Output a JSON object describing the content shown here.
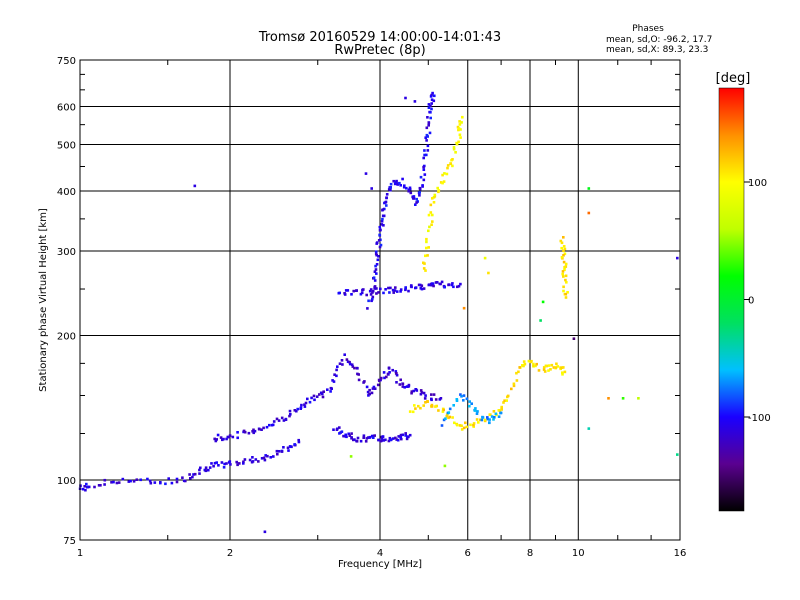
{
  "chart_data": {
    "type": "scatter",
    "title": "Tromsø 20160529 14:00:00-14:01:43",
    "subtitle": "RwPretec (8p)",
    "xlabel": "Frequency [MHz]",
    "ylabel": "Stationary phase Virtual Height [km]",
    "x_scale": "log",
    "y_scale": "log",
    "xlim": [
      1,
      16
    ],
    "ylim": [
      75,
      750
    ],
    "x_ticks": [
      {
        "value": 1,
        "label": "1"
      },
      {
        "value": 2,
        "label": "2"
      },
      {
        "value": 4,
        "label": "4"
      },
      {
        "value": 6,
        "label": "6"
      },
      {
        "value": 8,
        "label": "8"
      },
      {
        "value": 10,
        "label": "10"
      },
      {
        "value": 16,
        "label": "16"
      }
    ],
    "y_ticks": [
      {
        "value": 75,
        "label": "75"
      },
      {
        "value": 100,
        "label": "100"
      },
      {
        "value": 200,
        "label": "200"
      },
      {
        "value": 300,
        "label": "300"
      },
      {
        "value": 400,
        "label": "400"
      },
      {
        "value": 500,
        "label": "500"
      },
      {
        "value": 600,
        "label": "600"
      },
      {
        "value": 750,
        "label": "750"
      }
    ],
    "grid": true,
    "phase_stats": {
      "heading": "Phases",
      "line_o": "mean, sd,O: -96.2, 17.7",
      "line_x": "mean, sd,X:  89.3, 23.3"
    },
    "colorbar": {
      "unit": "[deg]",
      "range": [
        -180,
        180
      ],
      "ticks": [
        {
          "value": 100,
          "label": "100"
        },
        {
          "value": 0,
          "label": "0"
        },
        {
          "value": -100,
          "label": "-100"
        }
      ],
      "colors": [
        "#000000",
        "#5a0090",
        "#1a00ff",
        "#00c0ff",
        "#00e060",
        "#00ff00",
        "#c0ff00",
        "#ffff00",
        "#ff9000",
        "#ff0000"
      ]
    },
    "traces": [
      {
        "name": "",
        "phase": -110,
        "points": [
          [
            1.0,
            96
          ],
          [
            1.05,
            97
          ],
          [
            1.2,
            100
          ],
          [
            1.4,
            99
          ],
          [
            1.6,
            100
          ],
          [
            1.75,
            105
          ],
          [
            1.85,
            107
          ],
          [
            2.0,
            108
          ],
          [
            2.2,
            110
          ],
          [
            2.4,
            112
          ],
          [
            2.6,
            116
          ],
          [
            2.75,
            120
          ]
        ]
      },
      {
        "name": "",
        "phase": -110,
        "points": [
          [
            1.85,
            122
          ],
          [
            2.0,
            123
          ],
          [
            2.2,
            126
          ],
          [
            2.4,
            130
          ],
          [
            2.6,
            136
          ],
          [
            2.8,
            142
          ],
          [
            3.0,
            150
          ],
          [
            3.2,
            155
          ]
        ]
      },
      {
        "name": "",
        "phase": -110,
        "points": [
          [
            3.25,
            128
          ],
          [
            3.4,
            124
          ],
          [
            3.6,
            122
          ],
          [
            3.8,
            122
          ],
          [
            4.0,
            122
          ],
          [
            4.2,
            122
          ],
          [
            4.4,
            123
          ],
          [
            4.6,
            124
          ]
        ]
      },
      {
        "name": "",
        "phase": -115,
        "points": [
          [
            3.2,
            160
          ],
          [
            3.4,
            180
          ],
          [
            3.6,
            170
          ],
          [
            3.8,
            150
          ],
          [
            4.0,
            160
          ],
          [
            4.2,
            170
          ],
          [
            4.4,
            160
          ],
          [
            4.6,
            155
          ],
          [
            4.9,
            150
          ],
          [
            5.3,
            148
          ]
        ]
      },
      {
        "name": "",
        "phase": -110,
        "points": [
          [
            3.3,
            245
          ],
          [
            3.6,
            246
          ],
          [
            3.9,
            247
          ],
          [
            4.2,
            248
          ],
          [
            4.5,
            250
          ],
          [
            4.8,
            252
          ],
          [
            5.1,
            255
          ],
          [
            5.4,
            256
          ],
          [
            5.8,
            256
          ]
        ]
      },
      {
        "name": "",
        "phase": -105,
        "points": [
          [
            3.8,
            230
          ],
          [
            3.9,
            260
          ],
          [
            3.95,
            290
          ],
          [
            4.0,
            320
          ],
          [
            4.05,
            350
          ],
          [
            4.1,
            380
          ],
          [
            4.2,
            410
          ],
          [
            4.4,
            420
          ],
          [
            4.6,
            400
          ],
          [
            4.75,
            380
          ],
          [
            4.85,
            410
          ],
          [
            4.95,
            480
          ],
          [
            5.0,
            540
          ],
          [
            5.05,
            600
          ],
          [
            5.1,
            640
          ]
        ]
      },
      {
        "name": "",
        "phase": 100,
        "points": [
          [
            4.9,
            270
          ],
          [
            5.0,
            320
          ],
          [
            5.1,
            380
          ],
          [
            5.3,
            420
          ],
          [
            5.6,
            460
          ],
          [
            5.75,
            520
          ],
          [
            5.85,
            570
          ]
        ]
      },
      {
        "name": "",
        "phase": 110,
        "points": [
          [
            4.6,
            140
          ],
          [
            5.0,
            145
          ],
          [
            5.4,
            140
          ],
          [
            5.8,
            128
          ],
          [
            6.2,
            132
          ],
          [
            6.8,
            138
          ],
          [
            7.2,
            145
          ],
          [
            7.6,
            172
          ],
          [
            8.0,
            175
          ],
          [
            8.6,
            170
          ],
          [
            9.0,
            173
          ],
          [
            9.4,
            168
          ]
        ]
      },
      {
        "name": "",
        "phase": -70,
        "points": [
          [
            5.3,
            130
          ],
          [
            5.8,
            150
          ],
          [
            6.2,
            140
          ],
          [
            6.6,
            132
          ],
          [
            7.0,
            138
          ]
        ]
      },
      {
        "name": "",
        "phase": 110,
        "points": [
          [
            9.3,
            320
          ],
          [
            9.35,
            290
          ],
          [
            9.4,
            265
          ],
          [
            9.45,
            240
          ]
        ]
      }
    ],
    "scatter_points": [
      {
        "x": 1.7,
        "y": 410,
        "phase": -110
      },
      {
        "x": 2.35,
        "y": 78,
        "phase": -110
      },
      {
        "x": 4.7,
        "y": 615,
        "phase": -110
      },
      {
        "x": 4.5,
        "y": 625,
        "phase": -110
      },
      {
        "x": 6.5,
        "y": 290,
        "phase": 90
      },
      {
        "x": 6.6,
        "y": 270,
        "phase": 110
      },
      {
        "x": 5.9,
        "y": 228,
        "phase": 140
      },
      {
        "x": 8.5,
        "y": 235,
        "phase": 20
      },
      {
        "x": 8.4,
        "y": 215,
        "phase": -20
      },
      {
        "x": 9.8,
        "y": 197,
        "phase": -150
      },
      {
        "x": 10.5,
        "y": 405,
        "phase": 10
      },
      {
        "x": 10.5,
        "y": 360,
        "phase": 150
      },
      {
        "x": 10.5,
        "y": 128,
        "phase": -40
      },
      {
        "x": 11.5,
        "y": 148,
        "phase": 140
      },
      {
        "x": 12.3,
        "y": 148,
        "phase": 30
      },
      {
        "x": 13.2,
        "y": 148,
        "phase": 60
      },
      {
        "x": 15.8,
        "y": 290,
        "phase": -110
      },
      {
        "x": 15.8,
        "y": 113,
        "phase": -30
      },
      {
        "x": 3.5,
        "y": 112,
        "phase": 50
      },
      {
        "x": 5.4,
        "y": 107,
        "phase": 50
      },
      {
        "x": 3.85,
        "y": 405,
        "phase": -110
      },
      {
        "x": 3.75,
        "y": 435,
        "phase": -110
      }
    ]
  }
}
